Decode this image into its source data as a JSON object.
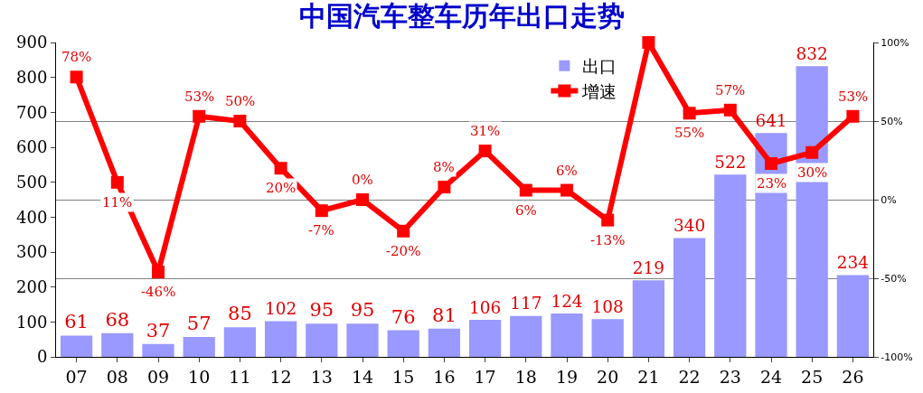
{
  "chart_data": {
    "type": "bar",
    "title": "中国汽车整车历年出口走势",
    "categories": [
      "07",
      "08",
      "09",
      "10",
      "11",
      "12",
      "13",
      "14",
      "15",
      "16",
      "17",
      "18",
      "19",
      "20",
      "21",
      "22",
      "23",
      "24",
      "25",
      "26"
    ],
    "series": [
      {
        "name": "出口",
        "color": "#9999ff",
        "values": [
          61,
          68,
          37,
          57,
          85,
          102,
          95,
          95,
          76,
          81,
          106,
          117,
          124,
          108,
          219,
          340,
          522,
          641,
          832,
          234
        ],
        "value_labels": [
          "61",
          "68",
          "37",
          "57",
          "85",
          "102",
          "95",
          "95",
          "76",
          "81",
          "106",
          "117",
          "124",
          "108",
          "219",
          "340",
          "522",
          "641",
          "832",
          "234"
        ]
      },
      {
        "name": "增速",
        "type": "line",
        "axis": "y2",
        "color": "#ff0000",
        "marker": "square",
        "values": [
          78,
          11,
          -46,
          53,
          50,
          20,
          -7,
          0,
          -20,
          8,
          31,
          6,
          6,
          -13,
          100,
          55,
          57,
          23,
          30,
          53
        ],
        "value_labels": [
          "78%",
          "11%",
          "-46%",
          "53%",
          "50%",
          "20%",
          "-7%",
          "0%",
          "-20%",
          "8%",
          "31%",
          "6%",
          "6%",
          "-13%",
          null,
          "55%",
          "57%",
          "23%",
          "30%",
          "53%"
        ]
      }
    ],
    "ylim": [
      0,
      900
    ],
    "yticks": [
      0,
      100,
      200,
      300,
      400,
      500,
      600,
      700,
      800,
      900
    ],
    "y2lim": [
      -100,
      100
    ],
    "y2ticks": [
      {
        "value": -100,
        "label": "-100%"
      },
      {
        "value": -50,
        "label": "-50%"
      },
      {
        "value": 0,
        "label": "0%"
      },
      {
        "value": 50,
        "label": "50%"
      },
      {
        "value": 100,
        "label": "100%"
      }
    ],
    "grid": "y2",
    "legend": "top right"
  }
}
